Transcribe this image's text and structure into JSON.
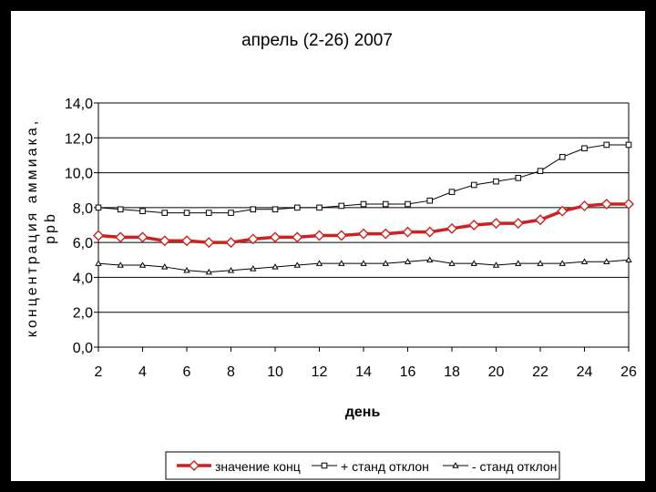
{
  "chart_data": {
    "type": "line",
    "title": "апрель (2-26) 2007",
    "xlabel": "день",
    "ylabel_line1": "концентрация аммиака,",
    "ylabel_line2": "ppb",
    "ylim": [
      0,
      14
    ],
    "xlim": [
      2,
      26
    ],
    "y_ticks": [
      "0,0",
      "2,0",
      "4,0",
      "6,0",
      "8,0",
      "10,0",
      "12,0",
      "14,0"
    ],
    "x_ticks": [
      "2",
      "4",
      "6",
      "8",
      "10",
      "12",
      "14",
      "16",
      "18",
      "20",
      "22",
      "24",
      "26"
    ],
    "grid": true,
    "legend_position": "bottom",
    "x": [
      2,
      3,
      4,
      5,
      6,
      7,
      8,
      9,
      10,
      11,
      12,
      13,
      14,
      15,
      16,
      17,
      18,
      19,
      20,
      21,
      22,
      23,
      24,
      25,
      26
    ],
    "series": [
      {
        "name": "значение конц",
        "color": "#cc2222",
        "marker": "diamond",
        "values": [
          6.4,
          6.3,
          6.3,
          6.1,
          6.1,
          6.0,
          6.0,
          6.2,
          6.3,
          6.3,
          6.4,
          6.4,
          6.5,
          6.5,
          6.6,
          6.6,
          6.8,
          7.0,
          7.1,
          7.1,
          7.3,
          7.8,
          8.1,
          8.2,
          8.2
        ]
      },
      {
        "name": "+ станд отклон",
        "color": "#000000",
        "marker": "square",
        "values": [
          8.0,
          7.9,
          7.8,
          7.7,
          7.7,
          7.7,
          7.7,
          7.9,
          7.9,
          8.0,
          8.0,
          8.1,
          8.2,
          8.2,
          8.2,
          8.4,
          8.9,
          9.3,
          9.5,
          9.7,
          10.1,
          10.9,
          11.4,
          11.6,
          11.6
        ]
      },
      {
        "name": "- станд отклон",
        "color": "#000000",
        "marker": "triangle",
        "values": [
          4.8,
          4.7,
          4.7,
          4.6,
          4.4,
          4.3,
          4.4,
          4.5,
          4.6,
          4.7,
          4.8,
          4.8,
          4.8,
          4.8,
          4.9,
          5.0,
          4.8,
          4.8,
          4.7,
          4.8,
          4.8,
          4.8,
          4.9,
          4.9,
          5.0
        ]
      }
    ]
  }
}
